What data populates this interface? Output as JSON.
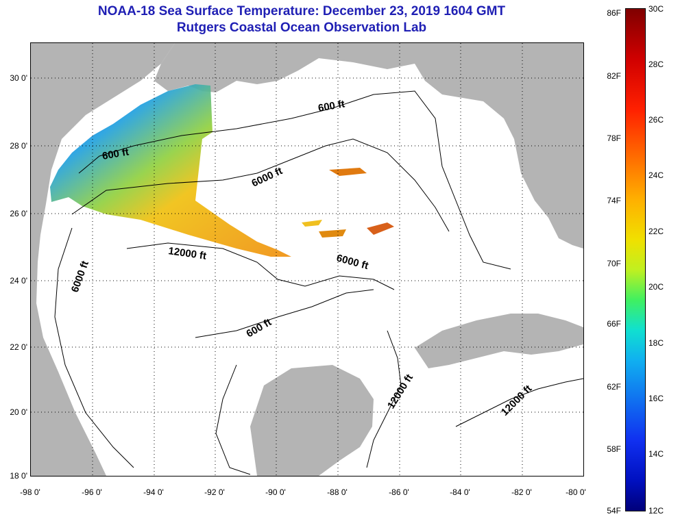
{
  "title": "NOAA-18 Sea Surface Temperature:  December 23, 2019 1604 GMT",
  "subtitle": "Rutgers Coastal Ocean Observation Lab",
  "map": {
    "lat_ticks": [
      "30 0'",
      "28 0'",
      "26 0'",
      "24 0'",
      "22 0'",
      "20 0'",
      "18 0'"
    ],
    "lon_ticks": [
      "-98 0'",
      "-96 0'",
      "-94 0'",
      "-92 0'",
      "-90 0'",
      "-88 0'",
      "-86 0'",
      "-84 0'",
      "-82 0'",
      "-80 0'"
    ],
    "lat_range": [
      18,
      31
    ],
    "lon_range": [
      -98,
      -80
    ],
    "gridlines": "dotted",
    "contours": [
      "600 ft",
      "600 ft",
      "6000 ft",
      "12000 ft",
      "6000 ft",
      "6000 ft",
      "600 ft",
      "12000 ft",
      "12000 ft"
    ],
    "land_color": "#b4b4b4"
  },
  "colorbar": {
    "fahrenheit_ticks": [
      "86F",
      "82F",
      "78F",
      "74F",
      "70F",
      "66F",
      "62F",
      "58F",
      "54F"
    ],
    "celsius_ticks": [
      "30C",
      "28C",
      "26C",
      "24C",
      "22C",
      "20C",
      "18C",
      "16C",
      "14C",
      "12C"
    ],
    "range_c": [
      12,
      30
    ]
  },
  "colors": {
    "title": "#1f1fb4",
    "land": "#b4b4b4"
  }
}
